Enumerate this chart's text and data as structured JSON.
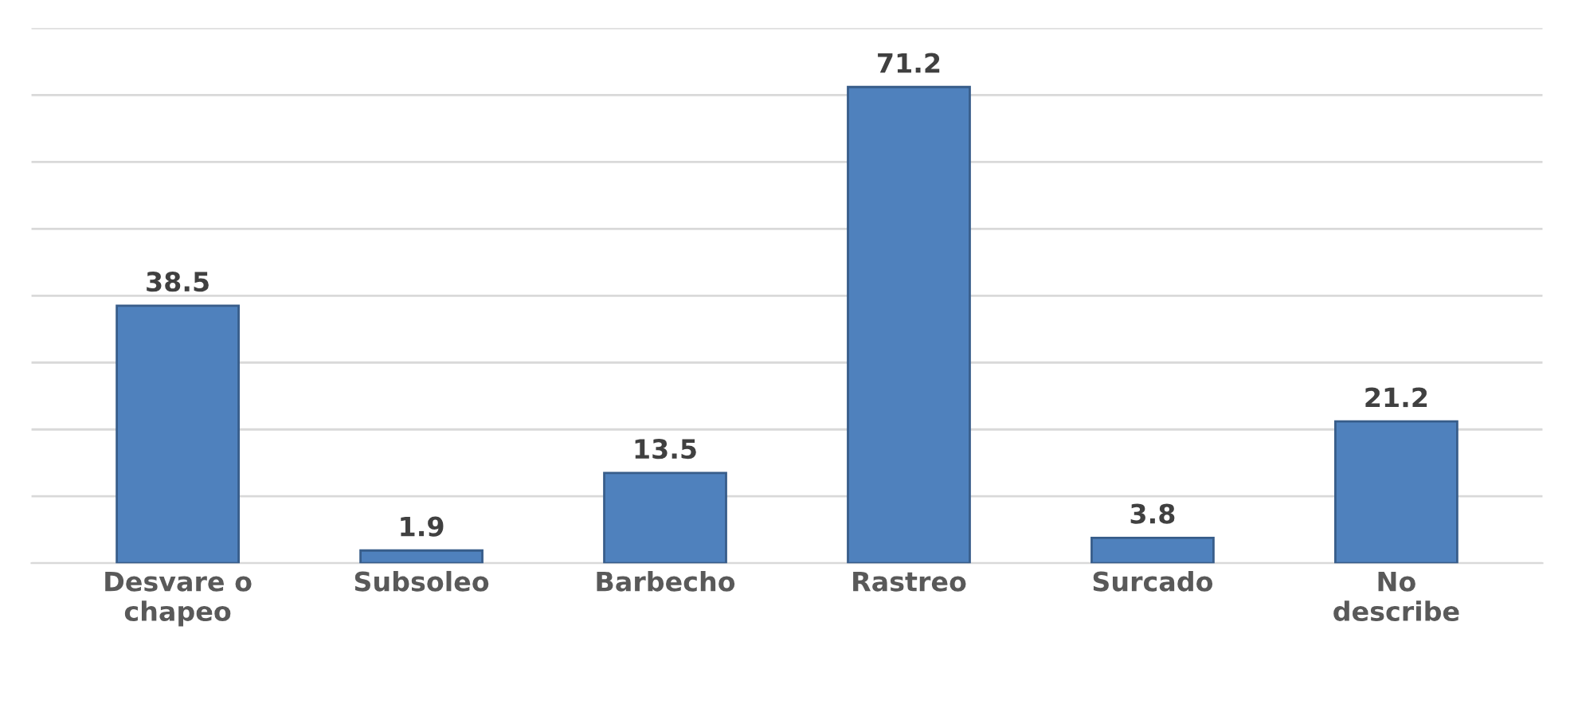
{
  "chart_data": {
    "type": "bar",
    "categories": [
      "Desvare o\nchapeo",
      "Subsoleo",
      "Barbecho",
      "Rastreo",
      "Surcado",
      "No\ndescribe"
    ],
    "values": [
      38.5,
      1.9,
      13.5,
      71.2,
      3.8,
      21.2
    ],
    "color": "#4f81bd",
    "ylim": [
      0,
      80
    ],
    "yticks": [
      {
        "value": 0,
        "label": null
      },
      {
        "value": 10,
        "label": null
      },
      {
        "value": 20,
        "label": null
      },
      {
        "value": 30,
        "label": null
      },
      {
        "value": 40,
        "label": null
      },
      {
        "value": 50,
        "label": null
      },
      {
        "value": 60,
        "label": null
      },
      {
        "value": 70,
        "label": null
      },
      {
        "value": 80,
        "label": null
      }
    ],
    "grid": "y",
    "data_labels": true,
    "legend": false
  }
}
